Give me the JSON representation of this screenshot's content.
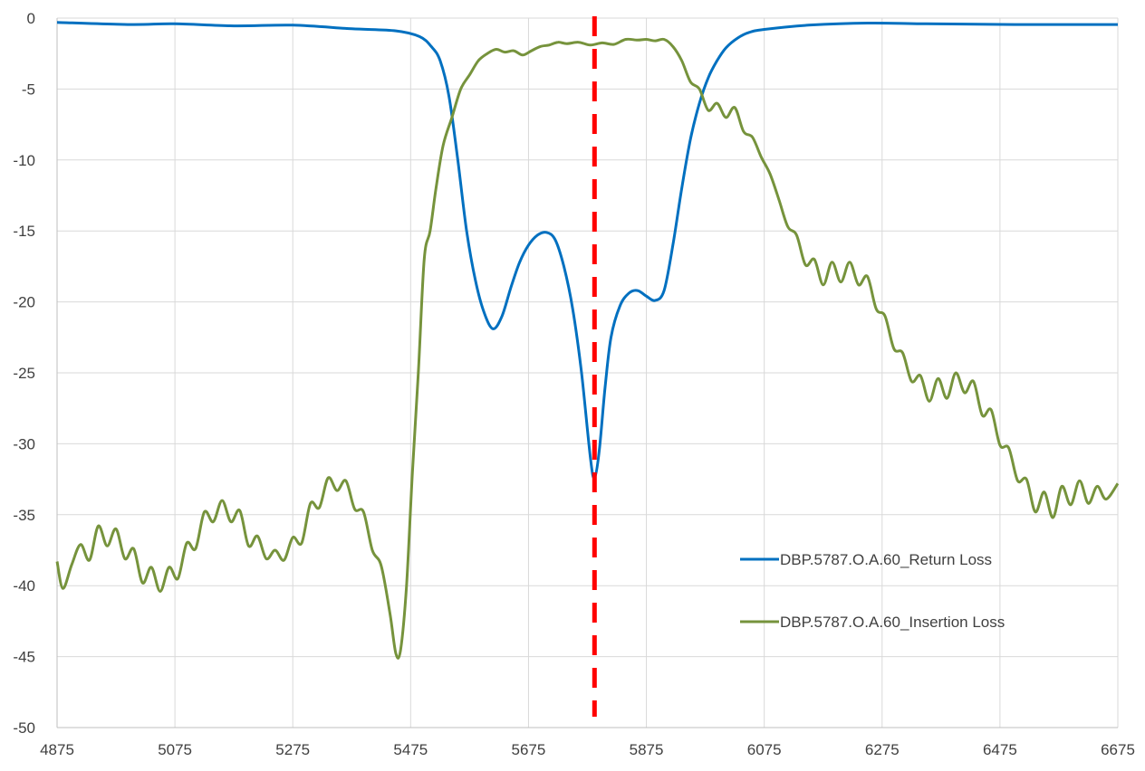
{
  "chart_data": {
    "type": "line",
    "title": "",
    "xlabel": "",
    "ylabel": "",
    "xlim": [
      4875,
      6675
    ],
    "ylim": [
      -50,
      0
    ],
    "x_ticks": [
      "4875",
      "5075",
      "5275",
      "5475",
      "5675",
      "5875",
      "6075",
      "6275",
      "6475",
      "6675"
    ],
    "y_ticks": [
      "0",
      "-5",
      "-10",
      "-15",
      "-20",
      "-25",
      "-30",
      "-35",
      "-40",
      "-45",
      "-50"
    ],
    "grid": true,
    "legend_position": "lower-right",
    "marker_line": {
      "x": 5787,
      "color": "#ff0000",
      "style": "dashed"
    },
    "series": [
      {
        "name": "DBP.5787.O.A.60_Return Loss",
        "color": "#0070c0",
        "points": [
          [
            4875,
            -0.3
          ],
          [
            5000,
            -0.45
          ],
          [
            5075,
            -0.4
          ],
          [
            5175,
            -0.55
          ],
          [
            5275,
            -0.5
          ],
          [
            5375,
            -0.75
          ],
          [
            5450,
            -0.9
          ],
          [
            5490,
            -1.3
          ],
          [
            5510,
            -2.0
          ],
          [
            5525,
            -3.0
          ],
          [
            5540,
            -5.5
          ],
          [
            5555,
            -10
          ],
          [
            5570,
            -15
          ],
          [
            5585,
            -18.5
          ],
          [
            5600,
            -20.8
          ],
          [
            5615,
            -21.9
          ],
          [
            5630,
            -21.0
          ],
          [
            5645,
            -19
          ],
          [
            5660,
            -17.2
          ],
          [
            5675,
            -16.0
          ],
          [
            5690,
            -15.3
          ],
          [
            5705,
            -15.1
          ],
          [
            5720,
            -15.6
          ],
          [
            5735,
            -17.5
          ],
          [
            5750,
            -20.5
          ],
          [
            5765,
            -25
          ],
          [
            5780,
            -31
          ],
          [
            5787,
            -32.4
          ],
          [
            5795,
            -30.5
          ],
          [
            5805,
            -26
          ],
          [
            5815,
            -22.5
          ],
          [
            5830,
            -20.3
          ],
          [
            5845,
            -19.4
          ],
          [
            5860,
            -19.2
          ],
          [
            5875,
            -19.6
          ],
          [
            5890,
            -19.9
          ],
          [
            5905,
            -19.2
          ],
          [
            5920,
            -16
          ],
          [
            5935,
            -12
          ],
          [
            5950,
            -8.5
          ],
          [
            5965,
            -6.0
          ],
          [
            5980,
            -4.2
          ],
          [
            5995,
            -3.0
          ],
          [
            6010,
            -2.1
          ],
          [
            6030,
            -1.4
          ],
          [
            6050,
            -1.0
          ],
          [
            6075,
            -0.8
          ],
          [
            6150,
            -0.5
          ],
          [
            6250,
            -0.35
          ],
          [
            6350,
            -0.4
          ],
          [
            6500,
            -0.45
          ],
          [
            6675,
            -0.45
          ]
        ]
      },
      {
        "name": "DBP.5787.O.A.60_Insertion Loss",
        "color": "#76933c",
        "points": [
          [
            4875,
            -38.3
          ],
          [
            4885,
            -40.2
          ],
          [
            4900,
            -38.5
          ],
          [
            4915,
            -37.1
          ],
          [
            4930,
            -38.2
          ],
          [
            4945,
            -35.8
          ],
          [
            4960,
            -37.2
          ],
          [
            4975,
            -36.0
          ],
          [
            4990,
            -38.1
          ],
          [
            5005,
            -37.4
          ],
          [
            5020,
            -39.8
          ],
          [
            5035,
            -38.7
          ],
          [
            5050,
            -40.4
          ],
          [
            5065,
            -38.7
          ],
          [
            5080,
            -39.5
          ],
          [
            5095,
            -37.0
          ],
          [
            5110,
            -37.4
          ],
          [
            5125,
            -34.8
          ],
          [
            5140,
            -35.5
          ],
          [
            5155,
            -34.0
          ],
          [
            5170,
            -35.5
          ],
          [
            5185,
            -34.7
          ],
          [
            5200,
            -37.2
          ],
          [
            5215,
            -36.5
          ],
          [
            5230,
            -38.1
          ],
          [
            5245,
            -37.5
          ],
          [
            5260,
            -38.2
          ],
          [
            5275,
            -36.6
          ],
          [
            5290,
            -37.0
          ],
          [
            5305,
            -34.2
          ],
          [
            5320,
            -34.5
          ],
          [
            5335,
            -32.4
          ],
          [
            5350,
            -33.3
          ],
          [
            5365,
            -32.6
          ],
          [
            5380,
            -34.6
          ],
          [
            5395,
            -34.8
          ],
          [
            5410,
            -37.5
          ],
          [
            5425,
            -38.6
          ],
          [
            5440,
            -42
          ],
          [
            5450,
            -44.8
          ],
          [
            5458,
            -44.5
          ],
          [
            5468,
            -40
          ],
          [
            5478,
            -32
          ],
          [
            5488,
            -25
          ],
          [
            5498,
            -17
          ],
          [
            5508,
            -15
          ],
          [
            5518,
            -12
          ],
          [
            5530,
            -9
          ],
          [
            5545,
            -7
          ],
          [
            5560,
            -5
          ],
          [
            5575,
            -4.0
          ],
          [
            5590,
            -3.0
          ],
          [
            5605,
            -2.5
          ],
          [
            5620,
            -2.2
          ],
          [
            5635,
            -2.4
          ],
          [
            5650,
            -2.3
          ],
          [
            5665,
            -2.6
          ],
          [
            5680,
            -2.3
          ],
          [
            5695,
            -2.0
          ],
          [
            5710,
            -1.9
          ],
          [
            5725,
            -1.7
          ],
          [
            5740,
            -1.8
          ],
          [
            5760,
            -1.7
          ],
          [
            5780,
            -1.9
          ],
          [
            5800,
            -1.75
          ],
          [
            5820,
            -1.85
          ],
          [
            5840,
            -1.5
          ],
          [
            5860,
            -1.55
          ],
          [
            5875,
            -1.5
          ],
          [
            5890,
            -1.6
          ],
          [
            5905,
            -1.5
          ],
          [
            5920,
            -2.0
          ],
          [
            5935,
            -3.0
          ],
          [
            5950,
            -4.5
          ],
          [
            5965,
            -5.0
          ],
          [
            5980,
            -6.5
          ],
          [
            5995,
            -6.0
          ],
          [
            6010,
            -7.0
          ],
          [
            6025,
            -6.3
          ],
          [
            6040,
            -8.0
          ],
          [
            6055,
            -8.4
          ],
          [
            6070,
            -9.8
          ],
          [
            6085,
            -11.0
          ],
          [
            6100,
            -12.8
          ],
          [
            6115,
            -14.7
          ],
          [
            6130,
            -15.3
          ],
          [
            6145,
            -17.4
          ],
          [
            6160,
            -17.0
          ],
          [
            6175,
            -18.8
          ],
          [
            6190,
            -17.2
          ],
          [
            6205,
            -18.6
          ],
          [
            6220,
            -17.2
          ],
          [
            6235,
            -18.8
          ],
          [
            6250,
            -18.2
          ],
          [
            6265,
            -20.5
          ],
          [
            6280,
            -21.0
          ],
          [
            6295,
            -23.3
          ],
          [
            6310,
            -23.6
          ],
          [
            6325,
            -25.6
          ],
          [
            6340,
            -25.2
          ],
          [
            6355,
            -27.0
          ],
          [
            6370,
            -25.4
          ],
          [
            6385,
            -26.8
          ],
          [
            6400,
            -25.0
          ],
          [
            6415,
            -26.4
          ],
          [
            6430,
            -25.6
          ],
          [
            6445,
            -28.0
          ],
          [
            6460,
            -27.6
          ],
          [
            6475,
            -30.1
          ],
          [
            6490,
            -30.3
          ],
          [
            6505,
            -32.6
          ],
          [
            6520,
            -32.5
          ],
          [
            6535,
            -34.8
          ],
          [
            6550,
            -33.4
          ],
          [
            6565,
            -35.2
          ],
          [
            6580,
            -33.0
          ],
          [
            6595,
            -34.3
          ],
          [
            6610,
            -32.6
          ],
          [
            6625,
            -34.2
          ],
          [
            6640,
            -33.0
          ],
          [
            6655,
            -33.9
          ],
          [
            6675,
            -32.8
          ]
        ]
      }
    ]
  }
}
